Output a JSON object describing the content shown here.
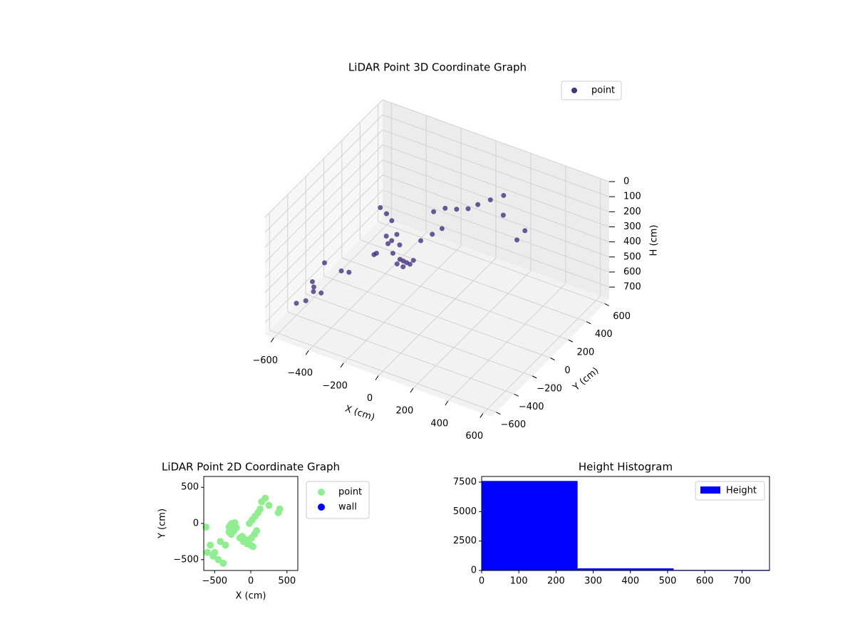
{
  "chart_data": [
    {
      "type": "scatter3d",
      "title": "LiDAR Point 3D Coordinate Graph",
      "xlabel": "X (cm)",
      "ylabel": "Y (cm)",
      "zlabel": "H (cm)",
      "xlim": [
        -650,
        650
      ],
      "ylim": [
        -650,
        650
      ],
      "zlim": [
        0,
        780
      ],
      "z_inverted": true,
      "xticks": [
        {
          "value": -600,
          "label": "−600"
        },
        {
          "value": -400,
          "label": "−400"
        },
        {
          "value": -200,
          "label": "−200"
        },
        0,
        200,
        400,
        600
      ],
      "yticks": [
        {
          "value": -600,
          "label": "−600"
        },
        {
          "value": -400,
          "label": "−400"
        },
        {
          "value": -200,
          "label": "−200"
        },
        0,
        200,
        400,
        600
      ],
      "zticks": [
        0,
        100,
        200,
        300,
        400,
        500,
        600,
        700
      ],
      "legend_loc": "upper right",
      "grid": true,
      "series": [
        {
          "name": "point",
          "color": "#46327e",
          "x": [
            -300,
            -280,
            -260,
            -250,
            -240,
            -220,
            -300,
            -270,
            -230,
            -200,
            -150,
            -100,
            -50,
            0,
            30,
            -120,
            -80,
            -40,
            10,
            50,
            80,
            -20,
            20,
            60,
            100,
            130,
            -350,
            -420,
            -500,
            -560,
            -620,
            -600,
            -450,
            -380,
            150,
            200,
            250,
            380,
            400,
            -520
          ],
          "y": [
            -50,
            -20,
            0,
            -80,
            -40,
            10,
            -120,
            -150,
            -100,
            -60,
            -200,
            -250,
            -280,
            -300,
            -320,
            -180,
            -220,
            -260,
            -200,
            -150,
            -100,
            0,
            50,
            100,
            150,
            200,
            -300,
            -250,
            -400,
            -300,
            -50,
            -400,
            -500,
            -550,
            300,
            350,
            250,
            150,
            200,
            -450
          ],
          "z": [
            150,
            200,
            250,
            300,
            350,
            400,
            420,
            380,
            330,
            280,
            300,
            320,
            300,
            250,
            200,
            340,
            310,
            280,
            150,
            120,
            100,
            90,
            80,
            100,
            110,
            100,
            450,
            500,
            550,
            600,
            650,
            700,
            500,
            450,
            120,
            100,
            150,
            200,
            160,
            620
          ]
        }
      ]
    },
    {
      "type": "scatter",
      "title": "LiDAR Point 2D Coordinate Graph",
      "xlabel": "X (cm)",
      "ylabel": "Y (cm)",
      "xlim": [
        -650,
        650
      ],
      "ylim": [
        -650,
        650
      ],
      "xticks": [
        {
          "value": -500,
          "label": "−500"
        },
        0,
        500
      ],
      "yticks": [
        {
          "value": -500,
          "label": "−500"
        },
        0,
        500
      ],
      "legend_loc": "outside right",
      "series": [
        {
          "name": "point",
          "color": "#90ee90",
          "x": [
            -300,
            -280,
            -260,
            -250,
            -240,
            -220,
            -300,
            -270,
            -230,
            -200,
            -150,
            -100,
            -50,
            0,
            30,
            -120,
            -80,
            -40,
            10,
            50,
            80,
            -20,
            20,
            60,
            100,
            130,
            -350,
            -420,
            -500,
            -560,
            -620,
            -600,
            -450,
            -380,
            150,
            200,
            250,
            380,
            400,
            -520
          ],
          "values": [
            -50,
            -20,
            0,
            -80,
            -40,
            10,
            -120,
            -150,
            -100,
            -60,
            -200,
            -250,
            -280,
            -300,
            -320,
            -180,
            -220,
            -260,
            -200,
            -150,
            -100,
            0,
            50,
            100,
            150,
            200,
            -300,
            -250,
            -400,
            -300,
            -50,
            -400,
            -500,
            -550,
            300,
            350,
            250,
            150,
            200,
            -450
          ]
        },
        {
          "name": "wall",
          "color": "#0000ff",
          "x": [],
          "values": []
        }
      ]
    },
    {
      "type": "histogram",
      "title": "Height Histogram",
      "bins": [
        0,
        258,
        516,
        774
      ],
      "xlim": [
        0,
        774
      ],
      "ylim": [
        0,
        7980
      ],
      "xticks": [
        0,
        100,
        200,
        300,
        400,
        500,
        600,
        700
      ],
      "yticks": [
        0,
        2500,
        5000,
        7500
      ],
      "legend_loc": "upper right",
      "series": [
        {
          "name": "Height",
          "color": "#0000ff",
          "values": [
            7600,
            180,
            50
          ]
        }
      ]
    }
  ]
}
